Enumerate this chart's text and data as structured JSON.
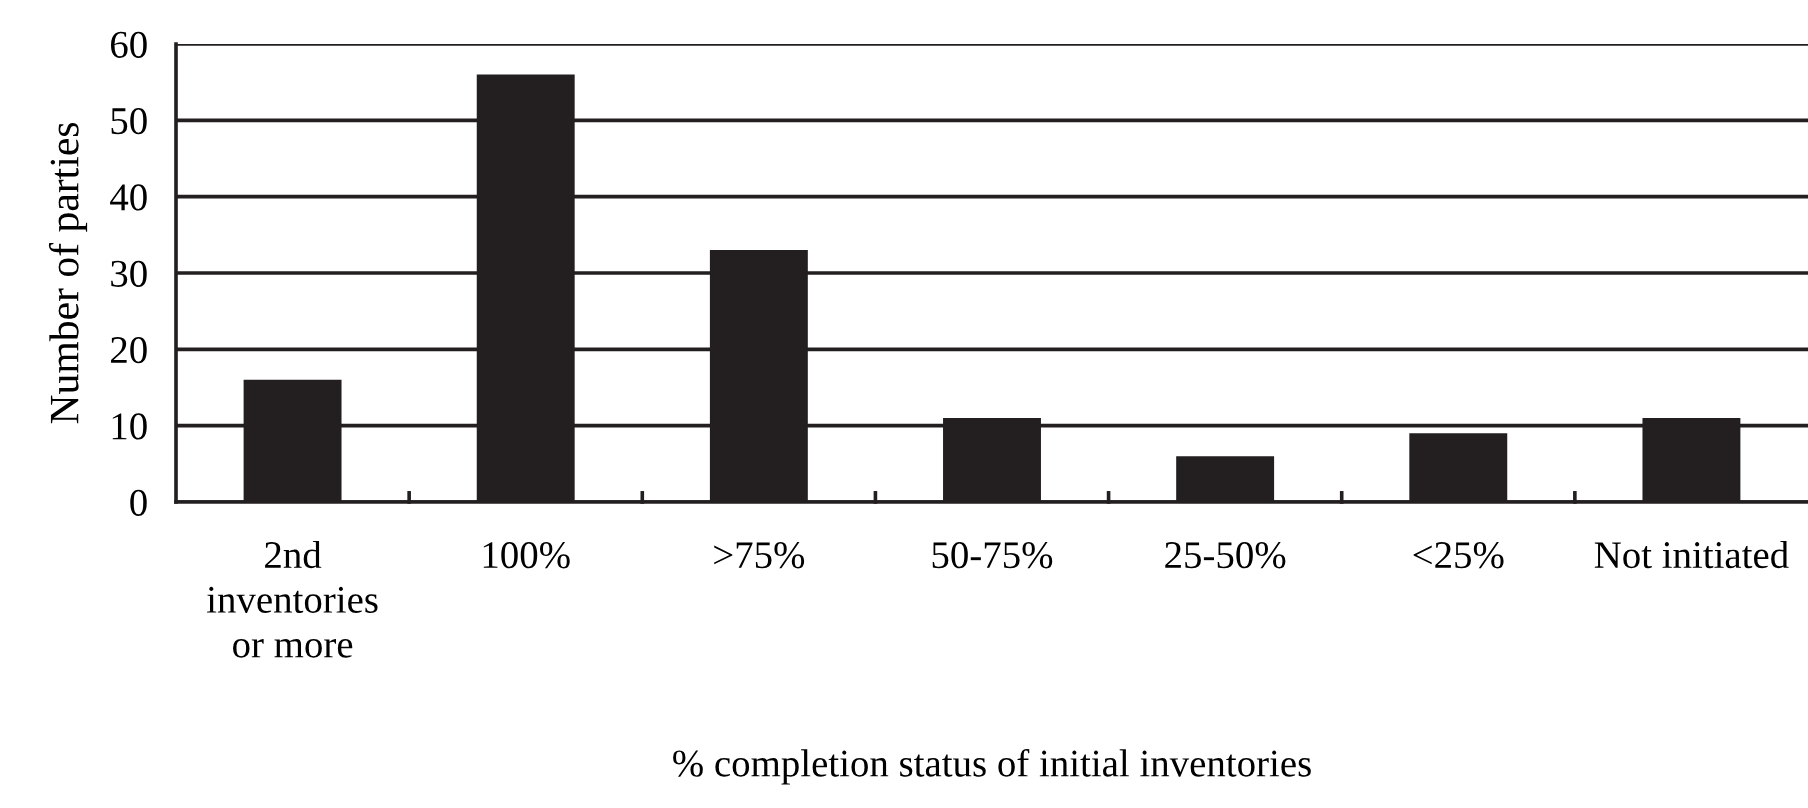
{
  "chart_data": {
    "type": "bar",
    "xlabel": "% completion status of initial inventories",
    "ylabel": "Number of parties",
    "categories": [
      "2nd\ninventories\nor more",
      "100%",
      ">75%",
      "50-75%",
      "25-50%",
      "<25%",
      "Not initiated"
    ],
    "values": [
      16,
      56,
      33,
      11,
      6,
      9,
      11
    ],
    "color": "#231f20",
    "ylim": [
      0,
      60
    ],
    "yticks": [
      0,
      10,
      20,
      30,
      40,
      50,
      60
    ],
    "grid": "y"
  }
}
